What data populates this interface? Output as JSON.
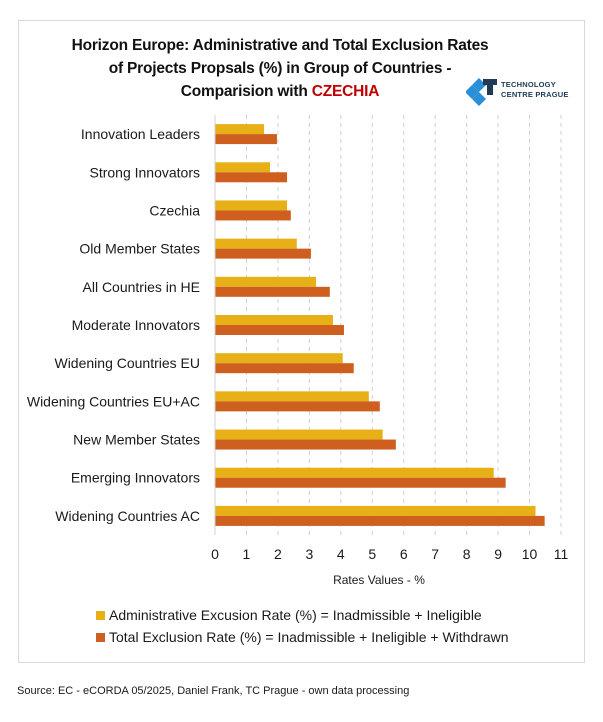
{
  "title": {
    "line1": "Horizon Europe: Administrative and Total Exclusion Rates",
    "line2": "of Projects Propsals (%) in Group of Countries -",
    "line3_prefix": "Comparision with ",
    "line3_highlight": "CZECHIA"
  },
  "logo": {
    "icon": "technology-centre-prague-logo-icon",
    "line1": "TECHNOLOGY",
    "line2": "CENTRE PRAGUE"
  },
  "colors": {
    "admin": "#e6b016",
    "total": "#cf5f1e",
    "highlight": "#c00000",
    "grid": "#d0d0d0",
    "axis": "#d0d0d0"
  },
  "chart_data": {
    "type": "bar",
    "orientation": "horizontal",
    "title": "Horizon Europe: Administrative and Total Exclusion Rates of Projects Propsals (%) in Group of Countries - Comparision with CZECHIA",
    "xlabel": "Rates Values - %",
    "ylabel": "",
    "xlim": [
      0,
      11
    ],
    "xticks": [
      0,
      1,
      2,
      3,
      4,
      5,
      6,
      7,
      8,
      9,
      10,
      11
    ],
    "grid": "vertical dashed",
    "legend_position": "bottom",
    "categories": [
      "Innovation Leaders",
      "Strong Innovators",
      "Czechia",
      "Old Member States",
      "All Countries in HE",
      "Moderate Innovators",
      "Widening Countries EU",
      "Widening Countries EU+AC",
      "New Member States",
      "Emerging Innovators",
      "Widening Countries AC"
    ],
    "series": [
      {
        "name": "Administrative Excusion Rate (%) = Inadmissible + Ineligible",
        "color": "#e6b016",
        "values": [
          1.56,
          1.75,
          2.29,
          2.6,
          3.21,
          3.75,
          4.06,
          4.89,
          5.33,
          8.86,
          10.19
        ]
      },
      {
        "name": "Total Exclusion Rate (%) = Inadmissible + Ineligible + Withdrawn",
        "color": "#cf5f1e",
        "values": [
          1.97,
          2.29,
          2.41,
          3.05,
          3.65,
          4.1,
          4.41,
          5.24,
          5.75,
          9.24,
          10.48
        ]
      }
    ]
  },
  "source": "Source: EC - eCORDA 05/2025, Daniel Frank, TC Prague - own data processing"
}
